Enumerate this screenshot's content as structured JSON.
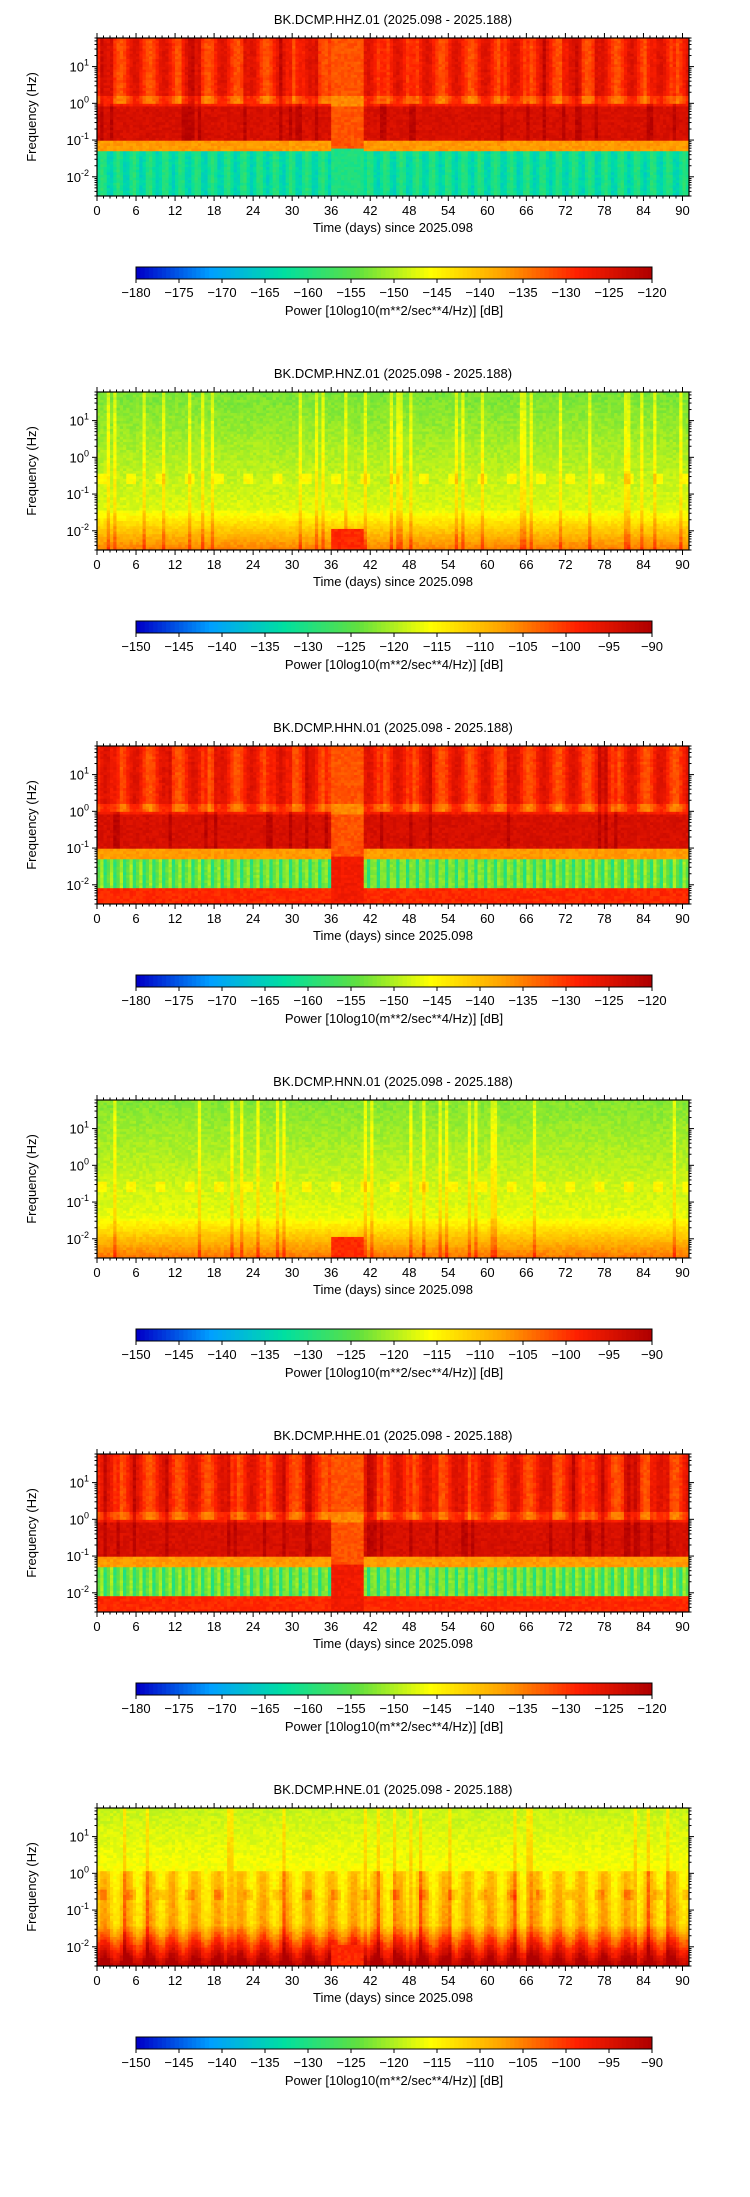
{
  "chart_data": [
    {
      "type": "heatmap",
      "title": "BK.DCMP.HHZ.01 (2025.098 - 2025.188)",
      "xlabel": "Time (days) since 2025.098",
      "ylabel": "Frequency (Hz)",
      "xlim": [
        0,
        91
      ],
      "ylim": [
        0.003,
        60
      ],
      "yscale": "log",
      "xticks": [
        "0",
        "6",
        "12",
        "18",
        "24",
        "30",
        "36",
        "42",
        "48",
        "54",
        "60",
        "66",
        "72",
        "78",
        "84",
        "90"
      ],
      "yticks": [
        {
          "base": "10",
          "exp": "1",
          "value": 10
        },
        {
          "base": "10",
          "exp": "0",
          "value": 1
        },
        {
          "base": "10",
          "exp": "-1",
          "value": 0.1
        },
        {
          "base": "10",
          "exp": "-2",
          "value": 0.01
        }
      ],
      "colorbar": {
        "label": "Power [10log10(m**2/sec**4/Hz)] [dB]",
        "range": [
          -180,
          -120
        ],
        "ticks": [
          "−180",
          "−175",
          "−170",
          "−165",
          "−160",
          "−155",
          "−150",
          "−145",
          "−140",
          "−135",
          "−130",
          "−125",
          "−120"
        ]
      },
      "colormap": [
        "#0000c8",
        "#00a0ff",
        "#00e0a0",
        "#60e040",
        "#ffff00",
        "#ffa000",
        "#ff2000",
        "#b00000"
      ],
      "grid": false,
      "pattern": "broadband"
    },
    {
      "type": "heatmap",
      "title": "BK.DCMP.HNZ.01 (2025.098 - 2025.188)",
      "xlabel": "Time (days) since 2025.098",
      "ylabel": "Frequency (Hz)",
      "xlim": [
        0,
        91
      ],
      "ylim": [
        0.003,
        60
      ],
      "yscale": "log",
      "xticks": [
        "0",
        "6",
        "12",
        "18",
        "24",
        "30",
        "36",
        "42",
        "48",
        "54",
        "60",
        "66",
        "72",
        "78",
        "84",
        "90"
      ],
      "yticks": [
        {
          "base": "10",
          "exp": "1",
          "value": 10
        },
        {
          "base": "10",
          "exp": "0",
          "value": 1
        },
        {
          "base": "10",
          "exp": "-1",
          "value": 0.1
        },
        {
          "base": "10",
          "exp": "-2",
          "value": 0.01
        }
      ],
      "colorbar": {
        "label": "Power [10log10(m**2/sec**4/Hz)] [dB]",
        "range": [
          -150,
          -90
        ],
        "ticks": [
          "−150",
          "−145",
          "−140",
          "−135",
          "−130",
          "−125",
          "−120",
          "−115",
          "−110",
          "−105",
          "−100",
          "−95",
          "−90"
        ]
      },
      "colormap": [
        "#0000c8",
        "#00a0ff",
        "#00e0a0",
        "#60e040",
        "#ffff00",
        "#ffa000",
        "#ff2000",
        "#b00000"
      ],
      "grid": false,
      "pattern": "strongmotion-z"
    },
    {
      "type": "heatmap",
      "title": "BK.DCMP.HHN.01 (2025.098 - 2025.188)",
      "xlabel": "Time (days) since 2025.098",
      "ylabel": "Frequency (Hz)",
      "xlim": [
        0,
        91
      ],
      "ylim": [
        0.003,
        60
      ],
      "yscale": "log",
      "xticks": [
        "0",
        "6",
        "12",
        "18",
        "24",
        "30",
        "36",
        "42",
        "48",
        "54",
        "60",
        "66",
        "72",
        "78",
        "84",
        "90"
      ],
      "yticks": [
        {
          "base": "10",
          "exp": "1",
          "value": 10
        },
        {
          "base": "10",
          "exp": "0",
          "value": 1
        },
        {
          "base": "10",
          "exp": "-1",
          "value": 0.1
        },
        {
          "base": "10",
          "exp": "-2",
          "value": 0.01
        }
      ],
      "colorbar": {
        "label": "Power [10log10(m**2/sec**4/Hz)] [dB]",
        "range": [
          -180,
          -120
        ],
        "ticks": [
          "−180",
          "−175",
          "−170",
          "−165",
          "−160",
          "−155",
          "−150",
          "−145",
          "−140",
          "−135",
          "−130",
          "−125",
          "−120"
        ]
      },
      "colormap": [
        "#0000c8",
        "#00a0ff",
        "#00e0a0",
        "#60e040",
        "#ffff00",
        "#ffa000",
        "#ff2000",
        "#b00000"
      ],
      "grid": false,
      "pattern": "broadband-h"
    },
    {
      "type": "heatmap",
      "title": "BK.DCMP.HNN.01 (2025.098 - 2025.188)",
      "xlabel": "Time (days) since 2025.098",
      "ylabel": "Frequency (Hz)",
      "xlim": [
        0,
        91
      ],
      "ylim": [
        0.003,
        60
      ],
      "yscale": "log",
      "xticks": [
        "0",
        "6",
        "12",
        "18",
        "24",
        "30",
        "36",
        "42",
        "48",
        "54",
        "60",
        "66",
        "72",
        "78",
        "84",
        "90"
      ],
      "yticks": [
        {
          "base": "10",
          "exp": "1",
          "value": 10
        },
        {
          "base": "10",
          "exp": "0",
          "value": 1
        },
        {
          "base": "10",
          "exp": "-1",
          "value": 0.1
        },
        {
          "base": "10",
          "exp": "-2",
          "value": 0.01
        }
      ],
      "colorbar": {
        "label": "Power [10log10(m**2/sec**4/Hz)] [dB]",
        "range": [
          -150,
          -90
        ],
        "ticks": [
          "−150",
          "−145",
          "−140",
          "−135",
          "−130",
          "−125",
          "−120",
          "−115",
          "−110",
          "−105",
          "−100",
          "−95",
          "−90"
        ]
      },
      "colormap": [
        "#0000c8",
        "#00a0ff",
        "#00e0a0",
        "#60e040",
        "#ffff00",
        "#ffa000",
        "#ff2000",
        "#b00000"
      ],
      "grid": false,
      "pattern": "strongmotion-n"
    },
    {
      "type": "heatmap",
      "title": "BK.DCMP.HHE.01 (2025.098 - 2025.188)",
      "xlabel": "Time (days) since 2025.098",
      "ylabel": "Frequency (Hz)",
      "xlim": [
        0,
        91
      ],
      "ylim": [
        0.003,
        60
      ],
      "yscale": "log",
      "xticks": [
        "0",
        "6",
        "12",
        "18",
        "24",
        "30",
        "36",
        "42",
        "48",
        "54",
        "60",
        "66",
        "72",
        "78",
        "84",
        "90"
      ],
      "yticks": [
        {
          "base": "10",
          "exp": "1",
          "value": 10
        },
        {
          "base": "10",
          "exp": "0",
          "value": 1
        },
        {
          "base": "10",
          "exp": "-1",
          "value": 0.1
        },
        {
          "base": "10",
          "exp": "-2",
          "value": 0.01
        }
      ],
      "colorbar": {
        "label": "Power [10log10(m**2/sec**4/Hz)] [dB]",
        "range": [
          -180,
          -120
        ],
        "ticks": [
          "−180",
          "−175",
          "−170",
          "−165",
          "−160",
          "−155",
          "−150",
          "−145",
          "−140",
          "−135",
          "−130",
          "−125",
          "−120"
        ]
      },
      "colormap": [
        "#0000c8",
        "#00a0ff",
        "#00e0a0",
        "#60e040",
        "#ffff00",
        "#ffa000",
        "#ff2000",
        "#b00000"
      ],
      "grid": false,
      "pattern": "broadband-h"
    },
    {
      "type": "heatmap",
      "title": "BK.DCMP.HNE.01 (2025.098 - 2025.188)",
      "xlabel": "Time (days) since 2025.098",
      "ylabel": "Frequency (Hz)",
      "xlim": [
        0,
        91
      ],
      "ylim": [
        0.003,
        60
      ],
      "yscale": "log",
      "xticks": [
        "0",
        "6",
        "12",
        "18",
        "24",
        "30",
        "36",
        "42",
        "48",
        "54",
        "60",
        "66",
        "72",
        "78",
        "84",
        "90"
      ],
      "yticks": [
        {
          "base": "10",
          "exp": "1",
          "value": 10
        },
        {
          "base": "10",
          "exp": "0",
          "value": 1
        },
        {
          "base": "10",
          "exp": "-1",
          "value": 0.1
        },
        {
          "base": "10",
          "exp": "-2",
          "value": 0.01
        }
      ],
      "colorbar": {
        "label": "Power [10log10(m**2/sec**4/Hz)] [dB]",
        "range": [
          -150,
          -90
        ],
        "ticks": [
          "−150",
          "−145",
          "−140",
          "−135",
          "−130",
          "−125",
          "−120",
          "−115",
          "−110",
          "−105",
          "−100",
          "−95",
          "−90"
        ]
      },
      "colormap": [
        "#0000c8",
        "#00a0ff",
        "#00e0a0",
        "#60e040",
        "#ffff00",
        "#ffa000",
        "#ff2000",
        "#b00000"
      ],
      "grid": false,
      "pattern": "strongmotion-e"
    }
  ]
}
